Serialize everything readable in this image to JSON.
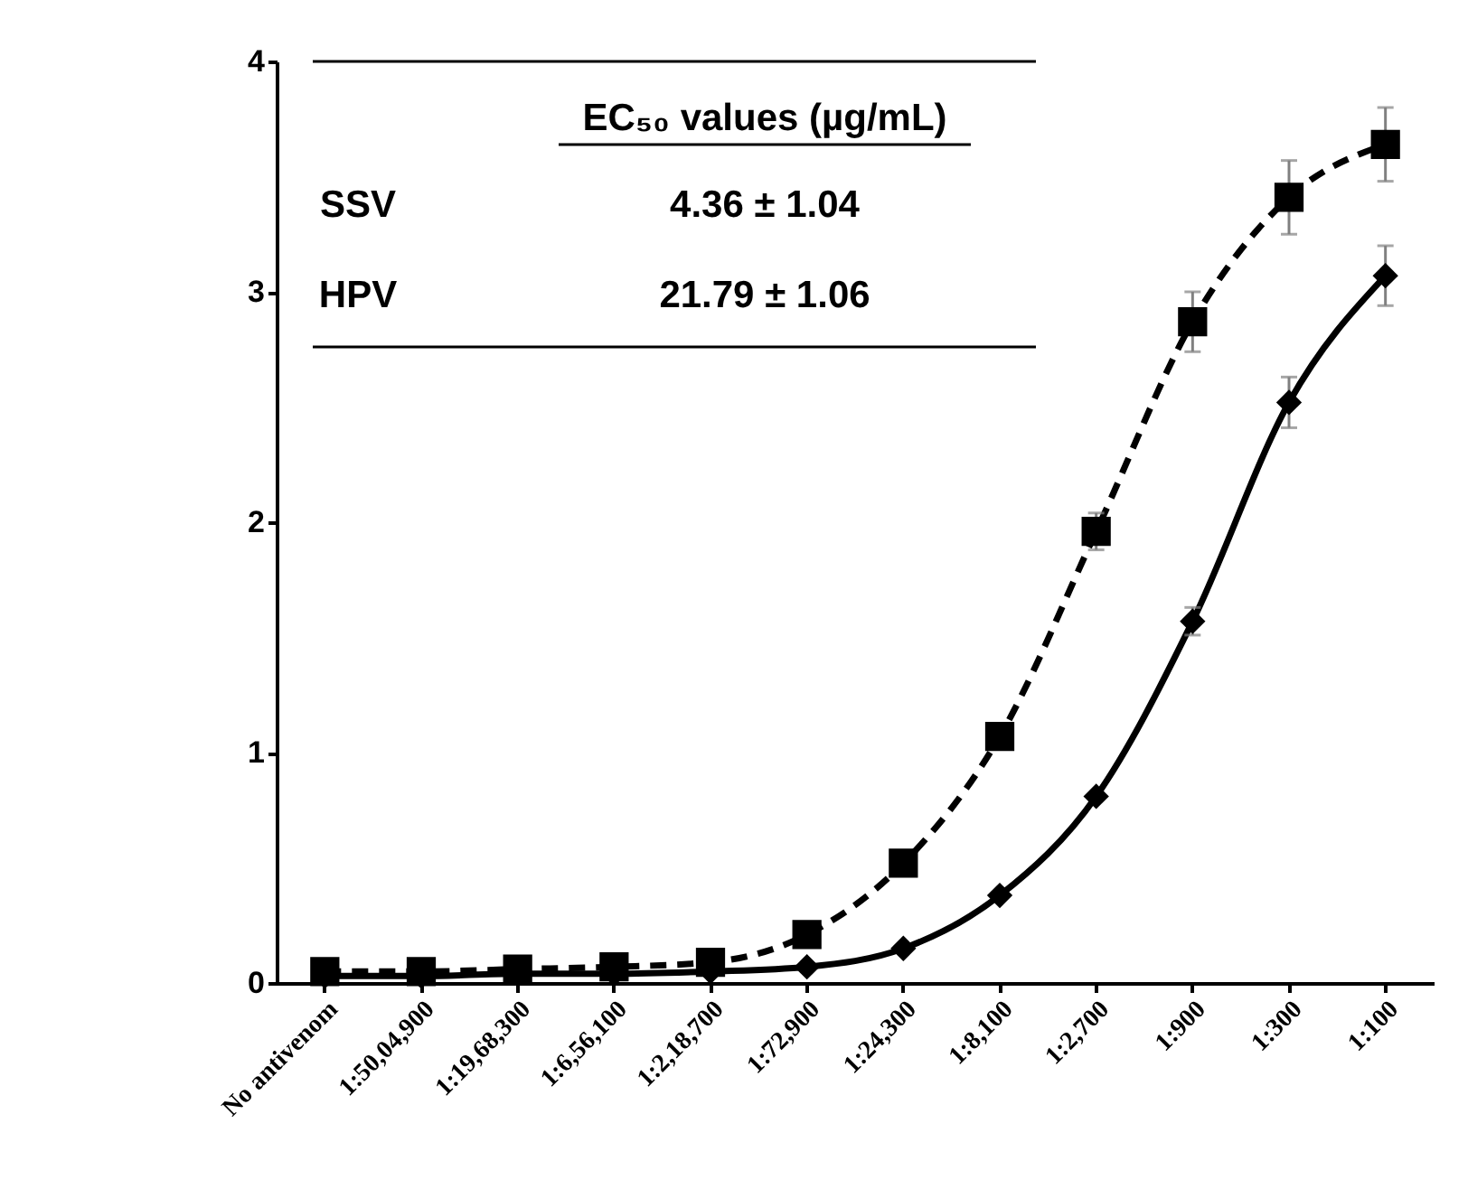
{
  "chart_data": {
    "type": "line",
    "categories": [
      "No antivenom",
      "1:50,04,900",
      "1:19,68,300",
      "1:6,56,100",
      "1:2,18,700",
      "1:72,900",
      "1:24,300",
      "1:8,100",
      "1:2,700",
      "1:900",
      "1:300",
      "1:100"
    ],
    "series": [
      {
        "color": "#000000",
        "marker": "square",
        "line_style": "dashed",
        "values": [
          0.05,
          0.05,
          0.06,
          0.07,
          0.09,
          0.21,
          0.52,
          1.07,
          1.96,
          2.87,
          3.41,
          3.64
        ],
        "errors": [
          null,
          null,
          null,
          null,
          null,
          null,
          null,
          null,
          0.08,
          0.13,
          0.16,
          0.16
        ]
      },
      {
        "color": "#000000",
        "marker": "diamond",
        "line_style": "solid",
        "values": [
          0.03,
          0.03,
          0.04,
          0.04,
          0.05,
          0.07,
          0.15,
          0.38,
          0.81,
          1.57,
          2.52,
          3.07
        ],
        "errors": [
          null,
          null,
          null,
          null,
          null,
          null,
          null,
          null,
          null,
          0.06,
          0.11,
          0.13
        ]
      }
    ],
    "ylim": [
      0,
      4
    ],
    "yticks": [
      0,
      1,
      2,
      3,
      4
    ],
    "annotations": [
      "EC₅₀ values (µg/mL)",
      "SSV",
      "4.36 ± 1.04",
      "HPV",
      "21.79 ± 1.06"
    ]
  }
}
